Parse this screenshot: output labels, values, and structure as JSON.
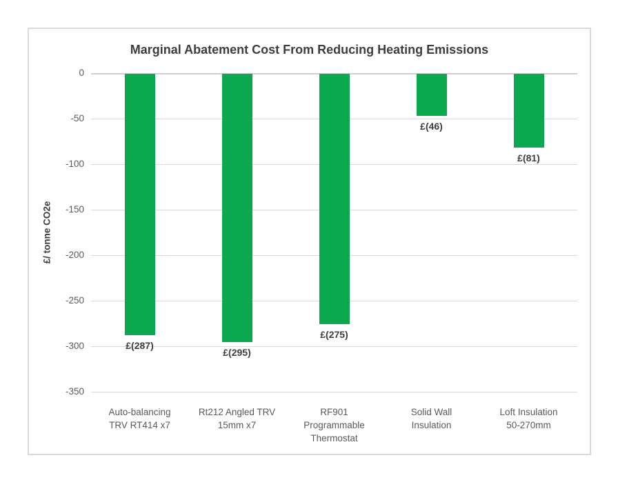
{
  "chart_data": {
    "type": "bar",
    "title": "Marginal Abatement Cost From Reducing Heating Emissions",
    "xlabel": "",
    "ylabel": "£/ tonne CO2e",
    "ylim": [
      -350,
      0
    ],
    "yticks": [
      0,
      -50,
      -100,
      -150,
      -200,
      -250,
      -300,
      -350
    ],
    "ytick_labels": [
      "0",
      "-50",
      "-100",
      "-150",
      "-200",
      "-250",
      "-300",
      "-350"
    ],
    "categories": [
      "Auto-balancing\nTRV RT414 x7",
      "Rt212 Angled TRV\n15mm x7",
      "RF901\nProgrammable\nThermostat",
      "Solid Wall\nInsulation",
      "Loft Insulation\n50-270mm"
    ],
    "values": [
      -287,
      -295,
      -275,
      -46,
      -81
    ],
    "data_labels": [
      "£(287)",
      "£(295)",
      "£(275)",
      "£(46)",
      "£(81)"
    ],
    "grid": true,
    "legend_position": "none",
    "bar_color": "#0CA84F",
    "gridline_color": "#D9D9D9",
    "axis_text_color": "#595959",
    "title_color": "#3D3D3D"
  }
}
